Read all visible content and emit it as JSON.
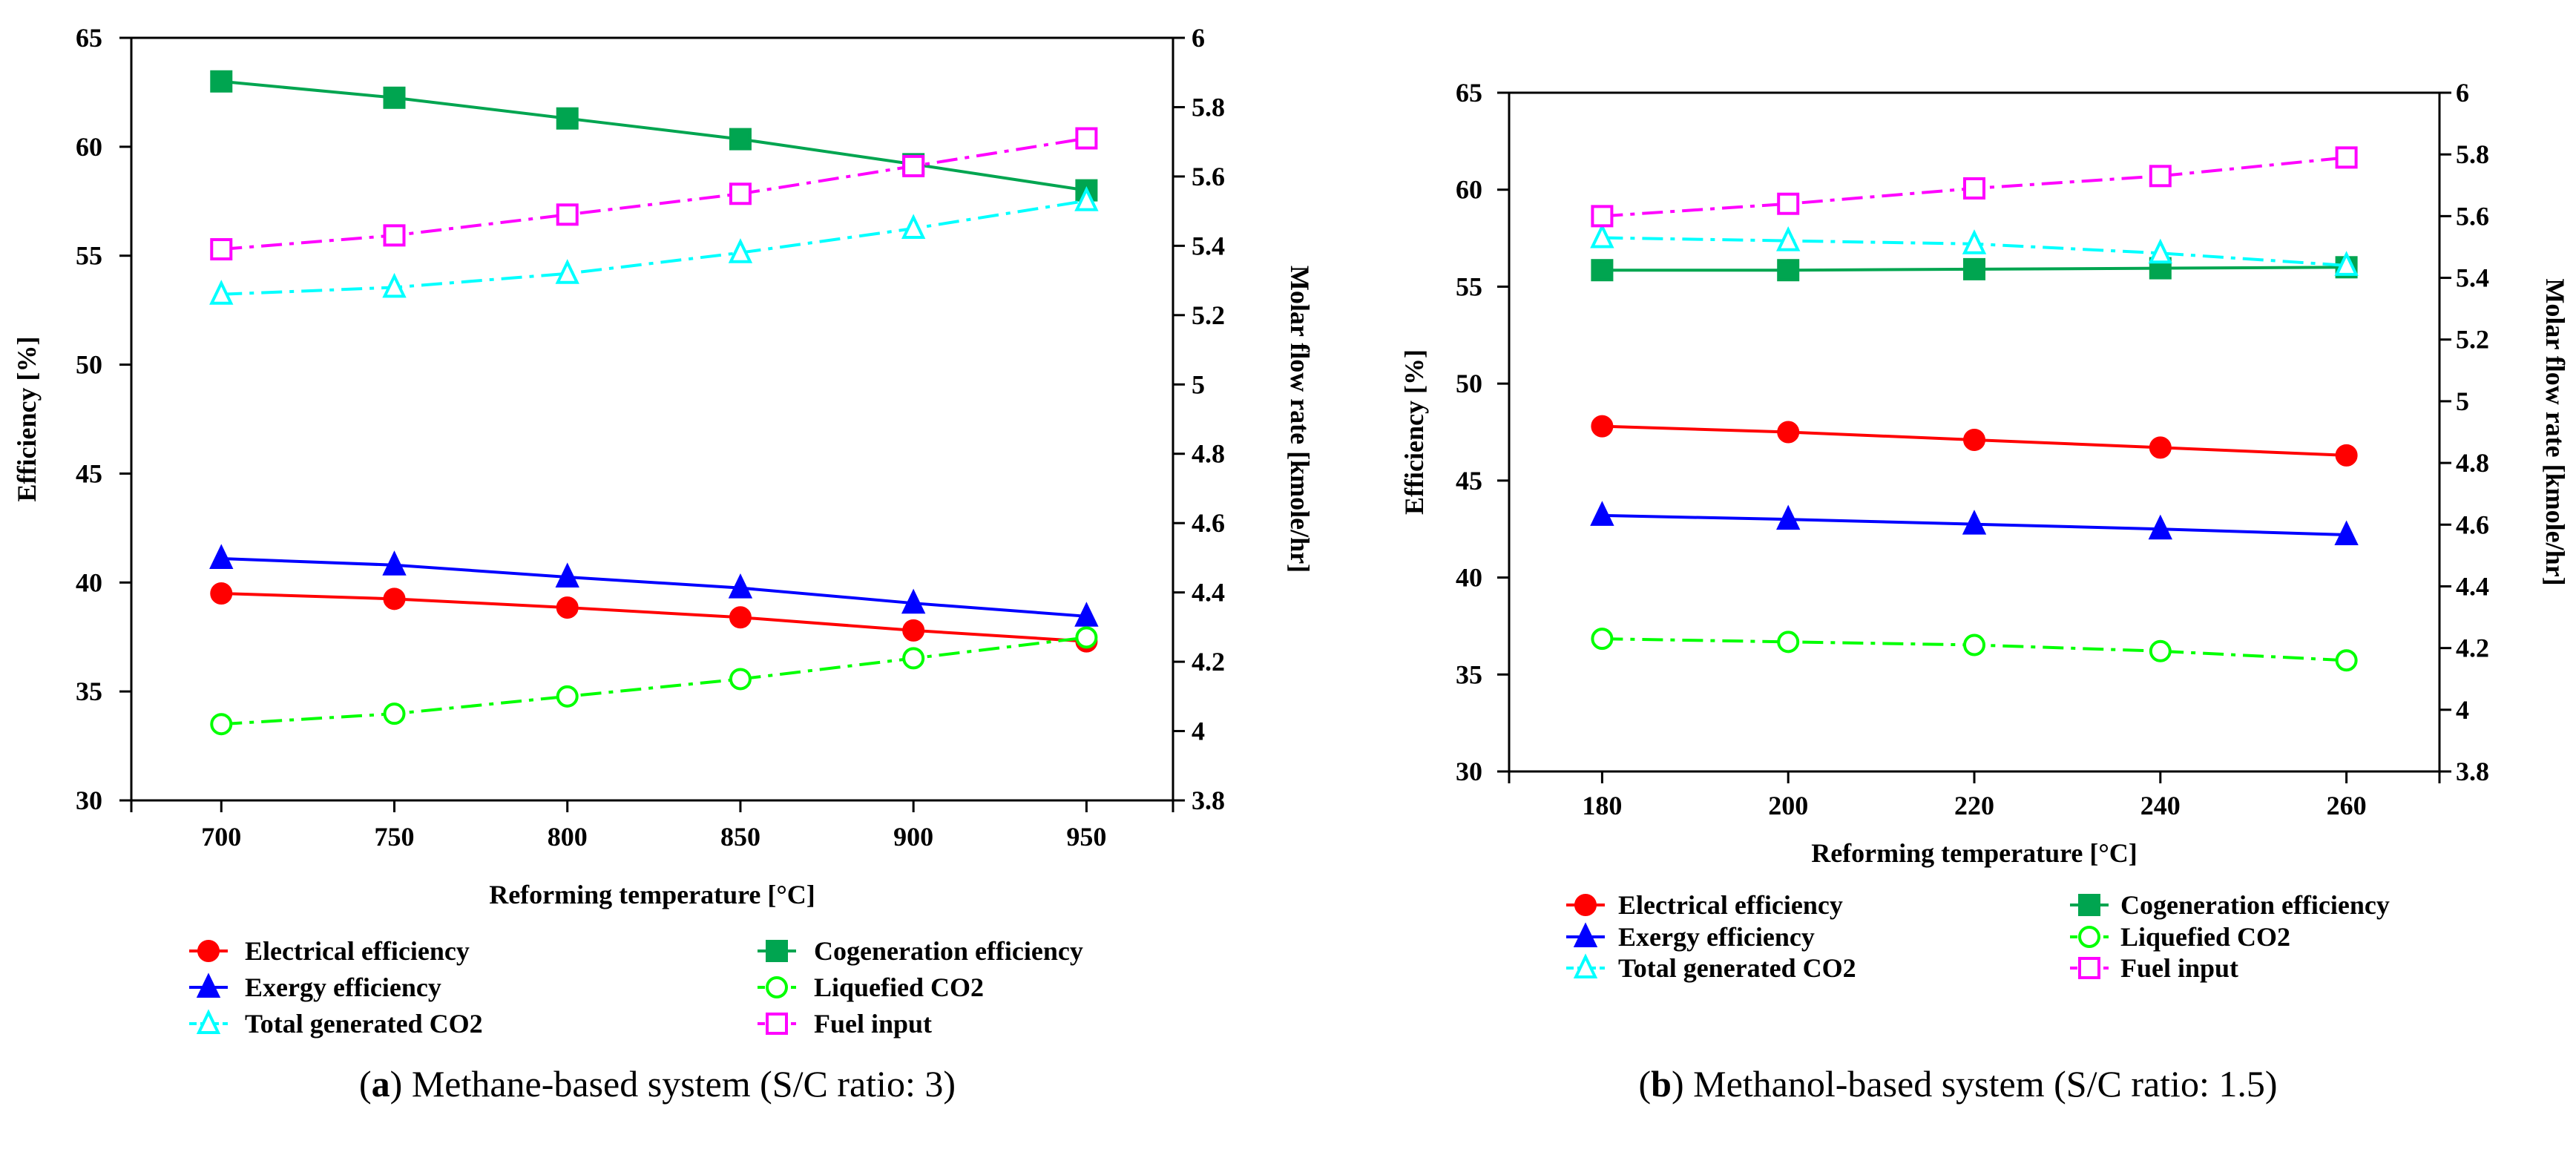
{
  "chart_data": [
    {
      "type": "line",
      "caption_label": "a",
      "caption_text": "Methane-based system (S/C ratio: 3)",
      "xlabel": "Reforming temperature [°C]",
      "ylabel": "Efficiency [%]",
      "y2label": "Molar flow rate [kmole/hr]",
      "x": [
        700,
        750,
        800,
        850,
        900,
        950
      ],
      "xlim": [
        674,
        975
      ],
      "xticks": [
        "700",
        "750",
        "800",
        "850",
        "900",
        "950"
      ],
      "ylim": [
        30,
        65
      ],
      "yticks": [
        "30",
        "35",
        "40",
        "45",
        "50",
        "55",
        "60",
        "65"
      ],
      "y2lim": [
        3.8,
        6
      ],
      "y2ticks": [
        "3.8",
        "4",
        "4.2",
        "4.4",
        "4.6",
        "4.8",
        "5",
        "5.2",
        "5.4",
        "5.6",
        "5.8",
        "6"
      ],
      "grid": false,
      "legend_position": "bottom",
      "series": [
        {
          "name": "Electrical efficiency",
          "axis": "left",
          "color": "#ff0000",
          "marker": "circle-filled",
          "line": "solid",
          "values": [
            39.5,
            39.25,
            38.85,
            38.4,
            37.8,
            37.3
          ]
        },
        {
          "name": "Cogeneration efficiency",
          "axis": "left",
          "color": "#00a550",
          "marker": "square-filled",
          "line": "solid",
          "values": [
            63.0,
            62.25,
            61.3,
            60.35,
            59.2,
            58.0
          ]
        },
        {
          "name": "Exergy efficiency",
          "axis": "left",
          "color": "#0000ff",
          "marker": "triangle-filled",
          "line": "solid",
          "values": [
            41.1,
            40.8,
            40.25,
            39.75,
            39.05,
            38.45
          ]
        },
        {
          "name": "Liquefied CO2",
          "axis": "right",
          "color": "#00ff00",
          "marker": "circle-open",
          "line": "dashdot",
          "values": [
            4.02,
            4.05,
            4.1,
            4.15,
            4.21,
            4.27
          ]
        },
        {
          "name": "Total generated CO2",
          "axis": "right",
          "color": "#00ffff",
          "marker": "triangle-open",
          "line": "dashdot",
          "values": [
            5.26,
            5.28,
            5.32,
            5.38,
            5.45,
            5.53
          ]
        },
        {
          "name": "Fuel input",
          "axis": "right",
          "color": "#ff00ff",
          "marker": "square-open",
          "line": "dashdot",
          "values": [
            5.39,
            5.43,
            5.49,
            5.55,
            5.63,
            5.71
          ]
        }
      ]
    },
    {
      "type": "line",
      "caption_label": "b",
      "caption_text": "Methanol-based system (S/C ratio: 1.5)",
      "xlabel": "Reforming temperature [°C]",
      "ylabel": "Efficiency [%]",
      "y2label": "Molar flow rate [kmole/hr]",
      "x": [
        180,
        200,
        220,
        240,
        260
      ],
      "xlim": [
        170,
        270
      ],
      "xticks": [
        "180",
        "200",
        "220",
        "240",
        "260"
      ],
      "ylim": [
        30,
        65
      ],
      "yticks": [
        "30",
        "35",
        "40",
        "45",
        "50",
        "55",
        "60",
        "65"
      ],
      "y2lim": [
        3.8,
        6
      ],
      "y2ticks": [
        "3.8",
        "4",
        "4.2",
        "4.4",
        "4.6",
        "4.8",
        "5",
        "5.2",
        "5.4",
        "5.6",
        "5.8",
        "6"
      ],
      "grid": false,
      "legend_position": "bottom",
      "series": [
        {
          "name": "Electrical efficiency",
          "axis": "left",
          "color": "#ff0000",
          "marker": "circle-filled",
          "line": "solid",
          "values": [
            47.8,
            47.5,
            47.1,
            46.7,
            46.3
          ]
        },
        {
          "name": "Cogeneration efficiency",
          "axis": "left",
          "color": "#00a550",
          "marker": "square-filled",
          "line": "solid",
          "values": [
            55.85,
            55.85,
            55.9,
            55.95,
            56.0
          ]
        },
        {
          "name": "Exergy efficiency",
          "axis": "left",
          "color": "#0000ff",
          "marker": "triangle-filled",
          "line": "solid",
          "values": [
            43.2,
            43.0,
            42.75,
            42.5,
            42.2
          ]
        },
        {
          "name": "Liquefied CO2",
          "axis": "right",
          "color": "#00ff00",
          "marker": "circle-open",
          "line": "dashdot",
          "values": [
            4.23,
            4.22,
            4.21,
            4.19,
            4.16
          ]
        },
        {
          "name": "Total generated CO2",
          "axis": "right",
          "color": "#00ffff",
          "marker": "triangle-open",
          "line": "dashdot",
          "values": [
            5.53,
            5.52,
            5.51,
            5.48,
            5.44
          ]
        },
        {
          "name": "Fuel input",
          "axis": "right",
          "color": "#ff00ff",
          "marker": "square-open",
          "line": "dashdot",
          "values": [
            5.6,
            5.64,
            5.69,
            5.73,
            5.79
          ]
        }
      ]
    }
  ]
}
